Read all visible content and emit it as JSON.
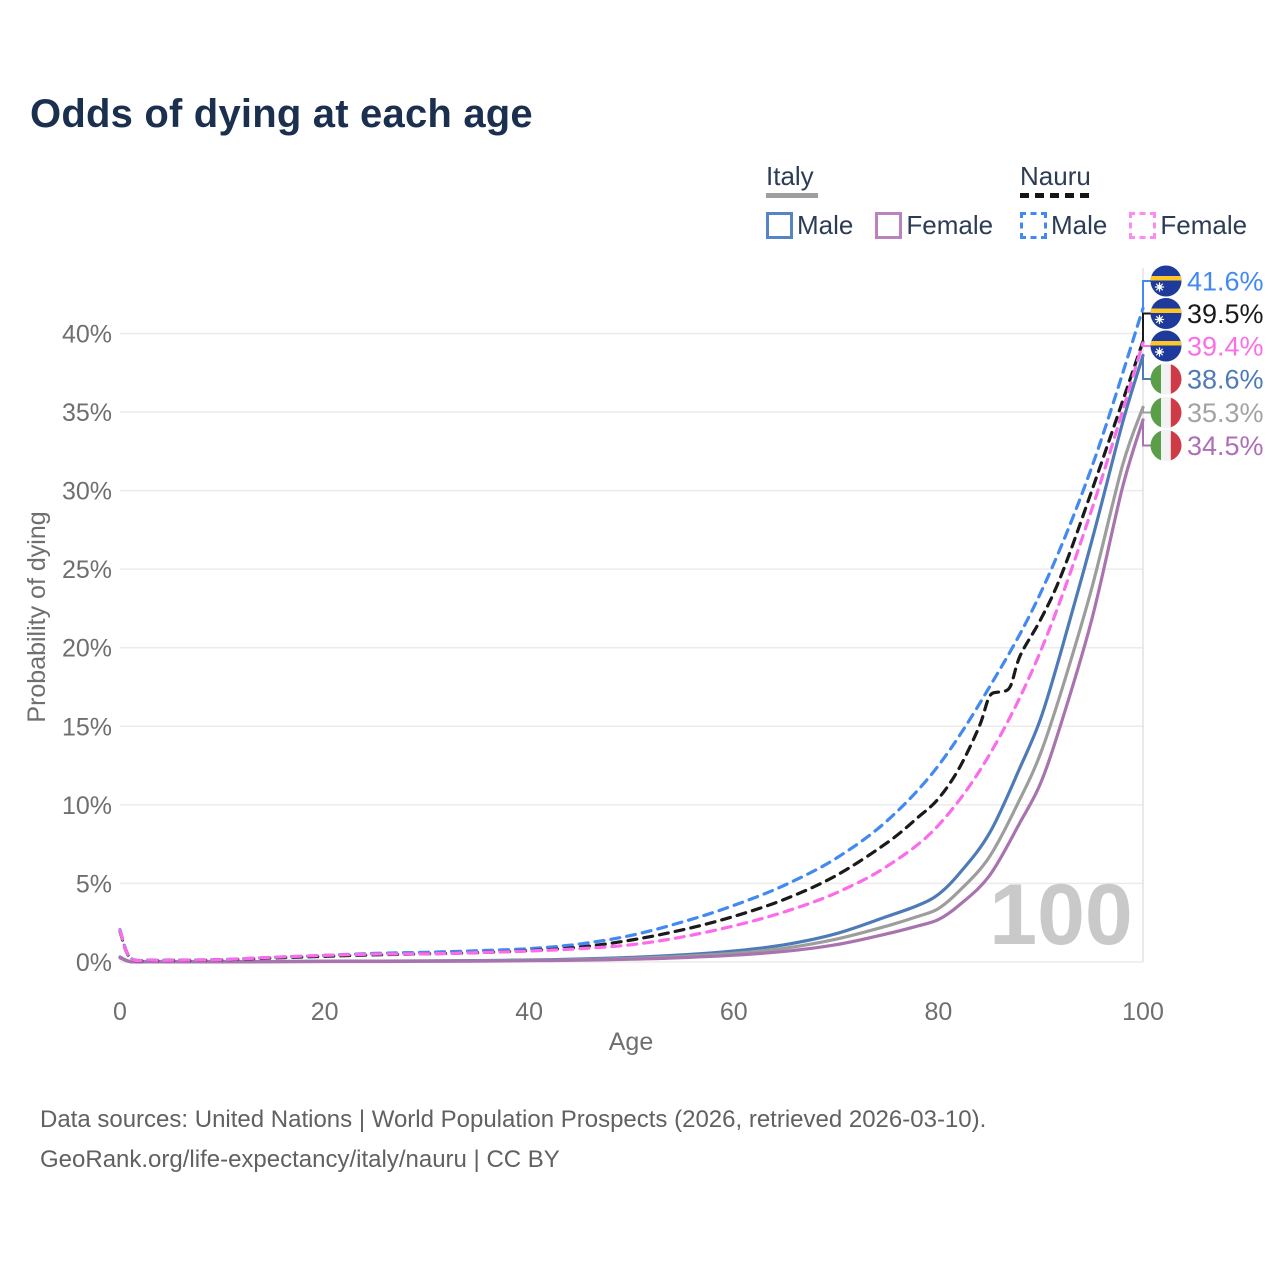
{
  "title": "Odds of dying at each age",
  "legend": {
    "italy": {
      "label": "Italy",
      "male": "Male",
      "female": "Female"
    },
    "nauru": {
      "label": "Nauru",
      "male": "Male",
      "female": "Female"
    }
  },
  "watermark": "100",
  "footer": {
    "line1": "Data sources: United Nations | World Population Prospects (2026, retrieved 2026-03-10).",
    "line2": "GeoRank.org/life-expectancy/italy/nauru | CC BY"
  },
  "colors": {
    "title": "#1b2f4f",
    "axis_text": "#6f6f6f",
    "gridline": "#ebebeb",
    "hover_line": "#e2e2e2",
    "watermark": "#c9c9c9",
    "italy_male": "#4e7bb7",
    "italy_both": "#9d9d9d",
    "italy_female": "#a873ae",
    "nauru_male": "#4389f2",
    "nauru_both": "#1a1a1a",
    "nauru_female": "#fa6cea",
    "flag_nauru_blue": "#1e3a9a",
    "flag_nauru_yellow": "#ffc726",
    "flag_italy_green": "#5b9e49",
    "flag_italy_white": "#f2f2f2",
    "flag_italy_red": "#ce3b46"
  },
  "chart_data": {
    "type": "line",
    "xlabel": "Age",
    "ylabel": "Probability of dying",
    "x_ticks": [
      0,
      20,
      40,
      60,
      80,
      100
    ],
    "y_ticks": [
      "0%",
      "5%",
      "10%",
      "15%",
      "20%",
      "25%",
      "30%",
      "35%",
      "40%"
    ],
    "xlim": [
      0,
      100
    ],
    "ylim_pct": [
      0,
      44
    ],
    "grid": "horizontal",
    "hover_age": 100,
    "series": [
      {
        "name": "Italy Male",
        "country": "Italy",
        "sex": "male",
        "flag": "italy",
        "color": "#4e7bb7",
        "dashed": false,
        "end_label": "38.6%",
        "label_color": "#4e7bb7",
        "x": [
          0,
          1,
          3,
          5,
          10,
          15,
          20,
          25,
          30,
          35,
          40,
          45,
          50,
          55,
          60,
          65,
          70,
          75,
          78,
          80,
          82,
          85,
          88,
          90,
          92,
          95,
          98,
          100
        ],
        "y": [
          0.32,
          0.03,
          0.015,
          0.012,
          0.012,
          0.03,
          0.05,
          0.06,
          0.07,
          0.09,
          0.13,
          0.19,
          0.29,
          0.45,
          0.7,
          1.1,
          1.8,
          2.9,
          3.6,
          4.3,
          5.6,
          8.2,
          12.4,
          15.5,
          19.8,
          26.8,
          34.3,
          38.6
        ]
      },
      {
        "name": "Italy",
        "country": "Italy",
        "sex": "both",
        "flag": "italy",
        "color": "#9d9d9d",
        "dashed": false,
        "end_label": "35.3%",
        "label_color": "#a3a3a3",
        "x": [
          0,
          1,
          3,
          5,
          10,
          15,
          20,
          25,
          30,
          35,
          40,
          45,
          50,
          55,
          60,
          65,
          70,
          75,
          78,
          80,
          82,
          85,
          88,
          90,
          92,
          95,
          98,
          100
        ],
        "y": [
          0.29,
          0.025,
          0.012,
          0.01,
          0.01,
          0.025,
          0.04,
          0.05,
          0.055,
          0.07,
          0.1,
          0.15,
          0.23,
          0.36,
          0.55,
          0.88,
          1.45,
          2.3,
          2.9,
          3.4,
          4.5,
          6.7,
          10.4,
          13.3,
          17.2,
          23.8,
          31.6,
          35.3
        ]
      },
      {
        "name": "Italy Female",
        "country": "Italy",
        "sex": "female",
        "flag": "italy",
        "color": "#a873ae",
        "dashed": false,
        "end_label": "34.5%",
        "label_color": "#ad6fb5",
        "x": [
          0,
          1,
          3,
          5,
          10,
          15,
          20,
          25,
          30,
          35,
          40,
          45,
          50,
          55,
          60,
          65,
          70,
          75,
          78,
          80,
          82,
          85,
          88,
          90,
          92,
          95,
          98,
          100
        ],
        "y": [
          0.26,
          0.02,
          0.01,
          0.009,
          0.009,
          0.02,
          0.03,
          0.035,
          0.045,
          0.055,
          0.08,
          0.12,
          0.18,
          0.28,
          0.43,
          0.68,
          1.1,
          1.8,
          2.3,
          2.7,
          3.6,
          5.5,
          8.9,
          11.4,
          15.2,
          21.8,
          30.2,
          34.5
        ]
      },
      {
        "name": "Nauru Male",
        "country": "Nauru",
        "sex": "male",
        "flag": "nauru",
        "color": "#4389f2",
        "dashed": true,
        "end_label": "41.6%",
        "label_color": "#4389f2",
        "x": [
          0,
          1,
          3,
          5,
          10,
          15,
          20,
          25,
          30,
          35,
          40,
          45,
          50,
          55,
          60,
          65,
          70,
          75,
          80,
          85,
          90,
          95,
          100
        ],
        "y": [
          2.05,
          0.28,
          0.13,
          0.12,
          0.16,
          0.3,
          0.42,
          0.55,
          0.62,
          0.72,
          0.85,
          1.15,
          1.7,
          2.55,
          3.6,
          4.9,
          6.6,
          9.0,
          12.5,
          17.5,
          23.5,
          31.5,
          41.6
        ]
      },
      {
        "name": "Nauru",
        "country": "Nauru",
        "sex": "both",
        "flag": "nauru",
        "color": "#1a1a1a",
        "dashed": true,
        "end_label": "39.5%",
        "label_color": "#1a1a1a",
        "x": [
          0,
          1,
          3,
          5,
          10,
          15,
          20,
          25,
          30,
          35,
          40,
          45,
          50,
          55,
          60,
          65,
          70,
          75,
          78,
          80,
          82,
          84,
          85,
          86,
          87,
          88,
          90,
          92,
          95,
          100
        ],
        "y": [
          1.95,
          0.25,
          0.11,
          0.1,
          0.14,
          0.26,
          0.36,
          0.46,
          0.52,
          0.6,
          0.72,
          0.95,
          1.4,
          2.05,
          2.9,
          4.0,
          5.5,
          7.6,
          9.2,
          10.4,
          12.3,
          15.0,
          16.9,
          17.2,
          17.5,
          19.5,
          21.8,
          24.6,
          30.0,
          39.5
        ]
      },
      {
        "name": "Nauru Female",
        "country": "Nauru",
        "sex": "female",
        "flag": "nauru",
        "color": "#fa6cea",
        "dashed": true,
        "end_label": "39.4%",
        "label_color": "#fb6ee8",
        "x": [
          0,
          1,
          3,
          5,
          10,
          15,
          20,
          25,
          30,
          35,
          40,
          45,
          50,
          55,
          60,
          65,
          70,
          75,
          80,
          85,
          90,
          95,
          100
        ],
        "y": [
          2.0,
          0.26,
          0.12,
          0.11,
          0.15,
          0.3,
          0.42,
          0.5,
          0.52,
          0.6,
          0.7,
          0.85,
          1.1,
          1.6,
          2.3,
          3.2,
          4.4,
          6.1,
          8.7,
          13.2,
          19.8,
          28.8,
          39.4
        ]
      }
    ]
  }
}
